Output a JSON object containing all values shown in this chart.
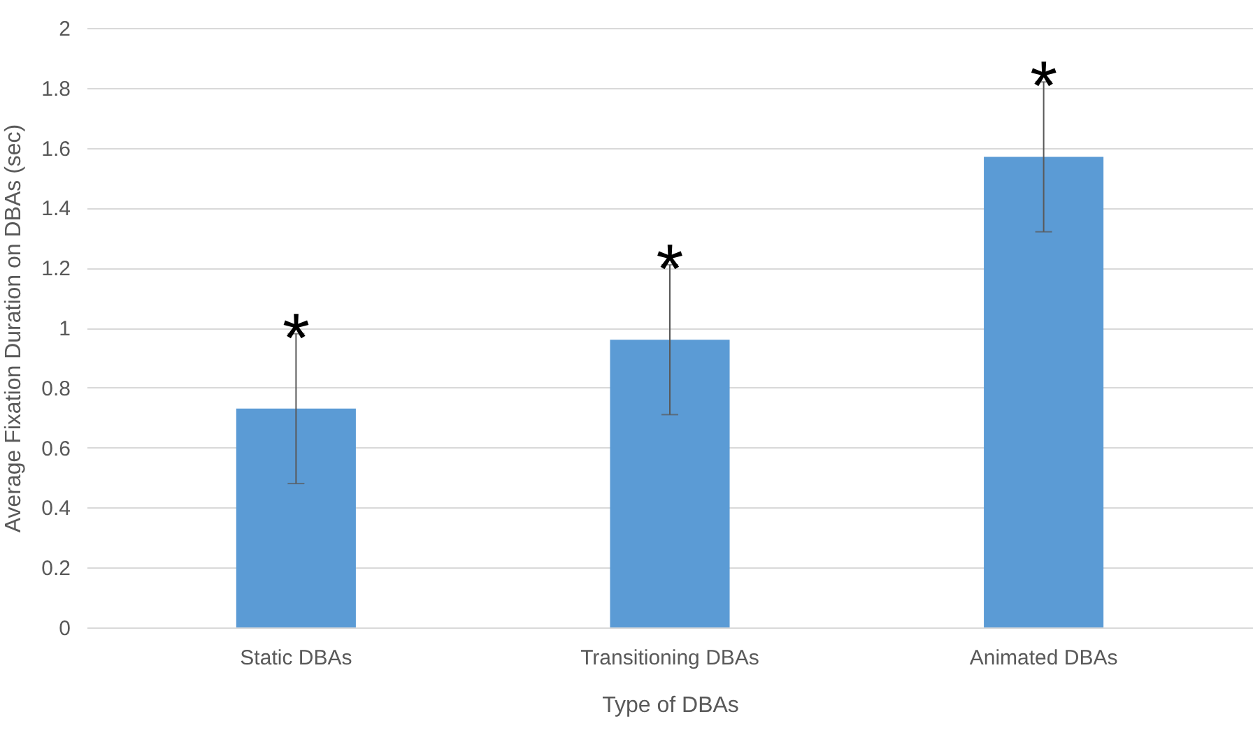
{
  "chart_data": {
    "type": "bar",
    "xlabel": "Type of DBAs",
    "ylabel": "Average Fixation Duration  on DBAs (sec)",
    "categories": [
      "Static DBAs",
      "Transitioning DBAs",
      "Animated DBAs"
    ],
    "series": [
      {
        "color": "#5b9bd5",
        "values": [
          0.73,
          0.96,
          1.57
        ],
        "errors": [
          0.25,
          0.25,
          0.25
        ]
      }
    ],
    "ylim": [
      0,
      2
    ],
    "yticks": [
      0,
      0.2,
      0.4,
      0.6,
      0.8,
      1,
      1.2,
      1.4,
      1.6,
      1.8,
      2
    ],
    "grid": "y",
    "annotations": [
      {
        "text": "*",
        "x": "Static DBAs",
        "y": 0.98
      },
      {
        "text": "*",
        "x": "Transitioning DBAs",
        "y": 1.21
      },
      {
        "text": "*",
        "x": "Animated DBAs",
        "y": 1.82
      }
    ]
  }
}
